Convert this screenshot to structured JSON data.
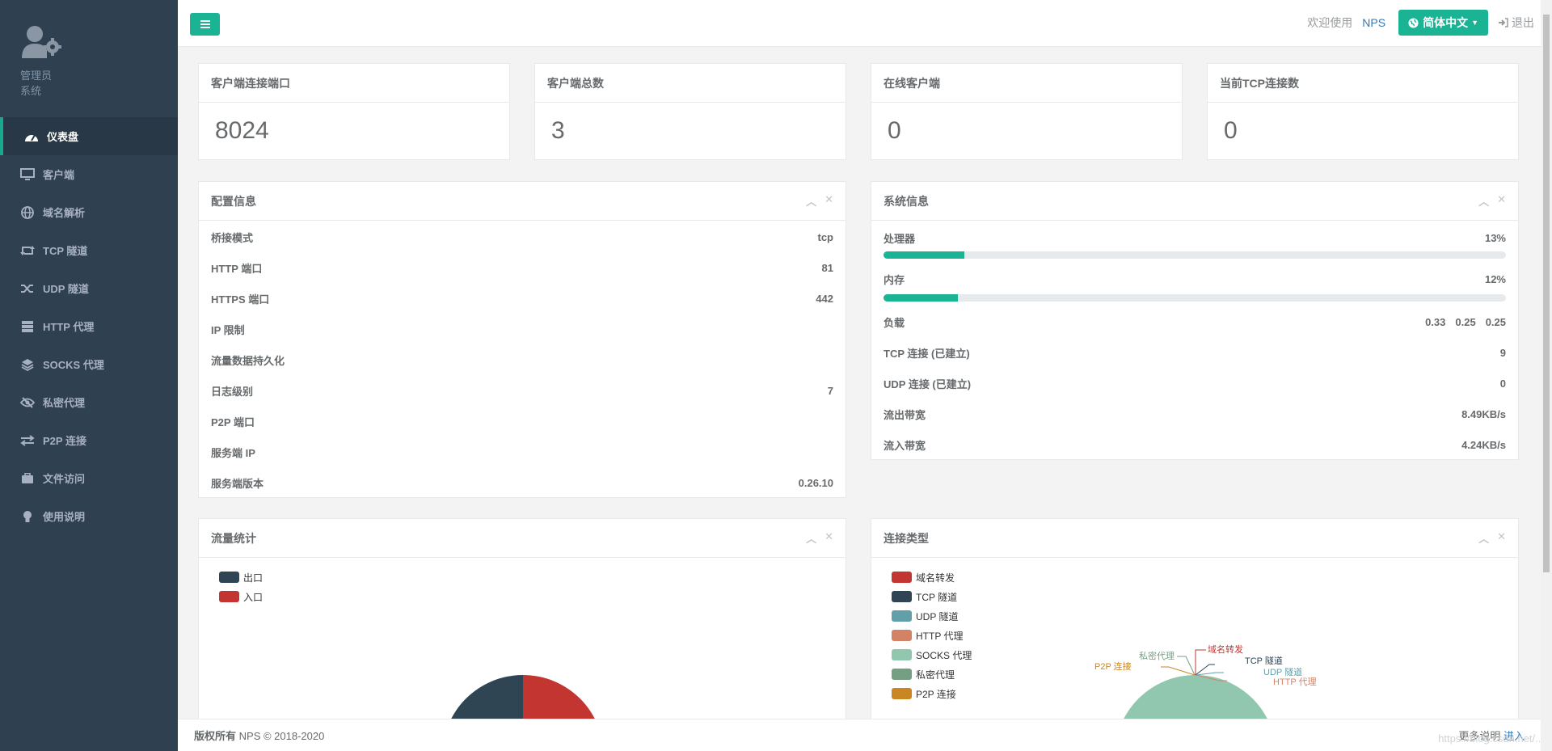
{
  "sidebar": {
    "profile": {
      "role": "管理员",
      "sub": "系统"
    },
    "items": [
      {
        "label": "仪表盘",
        "icon": "dashboard-icon",
        "active": true
      },
      {
        "label": "客户端",
        "icon": "desktop-icon"
      },
      {
        "label": "域名解析",
        "icon": "globe-icon"
      },
      {
        "label": "TCP 隧道",
        "icon": "retweet-icon"
      },
      {
        "label": "UDP 隧道",
        "icon": "random-icon"
      },
      {
        "label": "HTTP 代理",
        "icon": "server-icon"
      },
      {
        "label": "SOCKS 代理",
        "icon": "layers-icon"
      },
      {
        "label": "私密代理",
        "icon": "eye-slash-icon"
      },
      {
        "label": "P2P 连接",
        "icon": "exchange-icon"
      },
      {
        "label": "文件访问",
        "icon": "briefcase-icon"
      },
      {
        "label": "使用说明",
        "icon": "lightbulb-icon"
      }
    ]
  },
  "topbar": {
    "welcome": "欢迎使用",
    "brand": "NPS",
    "language": "简体中文",
    "logout": "退出"
  },
  "stats": [
    {
      "title": "客户端连接端口",
      "value": "8024"
    },
    {
      "title": "客户端总数",
      "value": "3"
    },
    {
      "title": "在线客户端",
      "value": "0"
    },
    {
      "title": "当前TCP连接数",
      "value": "0"
    }
  ],
  "config": {
    "title": "配置信息",
    "rows": [
      {
        "label": "桥接模式",
        "value": "tcp"
      },
      {
        "label": "HTTP 端口",
        "value": "81"
      },
      {
        "label": "HTTPS 端口",
        "value": "442"
      },
      {
        "label": "IP 限制",
        "value": ""
      },
      {
        "label": "流量数据持久化",
        "value": ""
      },
      {
        "label": "日志级别",
        "value": "7"
      },
      {
        "label": "P2P 端口",
        "value": ""
      },
      {
        "label": "服务端 IP",
        "value": ""
      },
      {
        "label": "服务端版本",
        "value": "0.26.10"
      }
    ]
  },
  "system": {
    "title": "系统信息",
    "cpu_label": "处理器",
    "cpu_value": "13%",
    "cpu_pct": 13,
    "mem_label": "内存",
    "mem_value": "12%",
    "mem_pct": 12,
    "load_label": "负载",
    "load_values": [
      "0.33",
      "0.25",
      "0.25"
    ],
    "rows": [
      {
        "label": "TCP 连接 (已建立)",
        "value": "9"
      },
      {
        "label": "UDP 连接 (已建立)",
        "value": "0"
      },
      {
        "label": "流出带宽",
        "value": "8.49KB/s"
      },
      {
        "label": "流入带宽",
        "value": "4.24KB/s"
      }
    ]
  },
  "traffic": {
    "title": "流量统计",
    "legend": [
      {
        "label": "出口",
        "color": "#2f4554"
      },
      {
        "label": "入口",
        "color": "#c23531"
      }
    ]
  },
  "conn_types": {
    "title": "连接类型",
    "legend": [
      {
        "label": "域名转发",
        "color": "#c23531"
      },
      {
        "label": "TCP 隧道",
        "color": "#2f4554"
      },
      {
        "label": "UDP 隧道",
        "color": "#61a0a8"
      },
      {
        "label": "HTTP 代理",
        "color": "#d48265"
      },
      {
        "label": "SOCKS 代理",
        "color": "#91c7ae"
      },
      {
        "label": "私密代理",
        "color": "#749f83"
      },
      {
        "label": "P2P 连接",
        "color": "#ca8622"
      }
    ]
  },
  "footer": {
    "copyright_bold": "版权所有",
    "copyright_rest": "NPS © 2018-2020",
    "more": "更多说明",
    "enter": "进入",
    "watermark": "https://blog.csdn.net/..."
  }
}
